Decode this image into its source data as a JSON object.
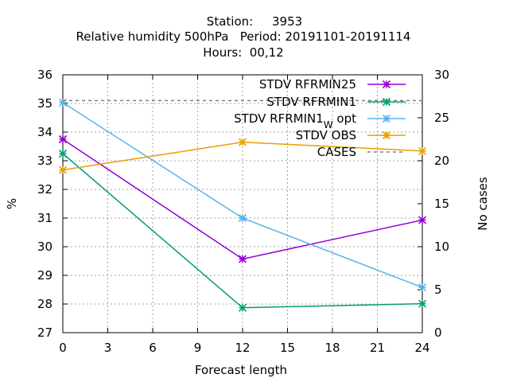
{
  "chart_data": {
    "type": "line",
    "title_lines": [
      "Station:     3953",
      "Relative humidity 500hPa   Period: 20191101-20191114",
      "Hours:  00,12"
    ],
    "xlabel": "Forecast length",
    "ylabel": "%",
    "y2label": "No cases",
    "xlim": [
      0,
      24
    ],
    "ylim": [
      27,
      36
    ],
    "y2lim": [
      0,
      30
    ],
    "xticks": [
      0,
      3,
      6,
      9,
      12,
      15,
      18,
      21,
      24
    ],
    "yticks": [
      27,
      28,
      29,
      30,
      31,
      32,
      33,
      34,
      35,
      36
    ],
    "y2ticks": [
      0,
      5,
      10,
      15,
      20,
      25,
      30
    ],
    "grid": true,
    "legend_position": "top-right",
    "series": [
      {
        "name": "STDV RFRMIN25",
        "color": "#9400d3",
        "axis": "y",
        "style": "line-points",
        "x": [
          0,
          12,
          24
        ],
        "y": [
          33.75,
          29.57,
          30.93
        ]
      },
      {
        "name": "STDV RFRMIN1",
        "color": "#009e73",
        "axis": "y",
        "style": "line-points",
        "x": [
          0,
          12,
          24
        ],
        "y": [
          33.25,
          27.87,
          28.01
        ]
      },
      {
        "name": "STDV RFRMIN1",
        "name_sub": "W",
        "name_suffix": "opt",
        "color": "#56b4e9",
        "axis": "y",
        "style": "line-points",
        "x": [
          0,
          12,
          24
        ],
        "y": [
          35.03,
          31.0,
          28.58
        ]
      },
      {
        "name": "STDV OBS",
        "color": "#e69f00",
        "axis": "y",
        "style": "line-points",
        "x": [
          0,
          12,
          24
        ],
        "y": [
          32.68,
          33.65,
          33.34
        ]
      },
      {
        "name": "CASES",
        "color": "#808080",
        "axis": "y2",
        "style": "dashed",
        "x": [
          0,
          12,
          24
        ],
        "y": [
          27,
          27,
          27
        ]
      }
    ]
  }
}
